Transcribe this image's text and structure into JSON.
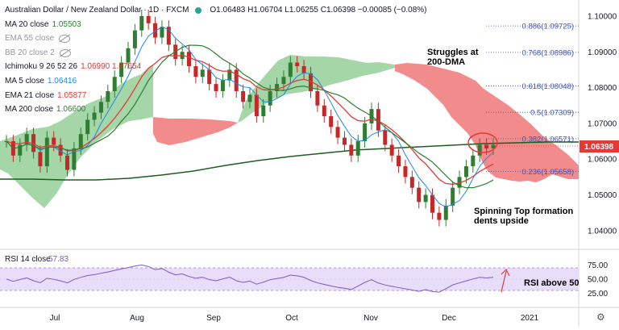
{
  "header": {
    "title": "Australian Dollar / New Zealand Dollar · 1D · FXCM",
    "ohlc": "O1.06483 H1.06704 L1.06255 C1.06398 −0.00085 (−0.08%)"
  },
  "indicators": [
    {
      "label": "MA 20 close",
      "value": "1.05503",
      "color": "#2e7d32",
      "hidden": false
    },
    {
      "label": "EMA 55 close",
      "value": "",
      "color": "#9598a1",
      "hidden": true
    },
    {
      "label": "BB 20 close 2",
      "value": "",
      "color": "#9598a1",
      "hidden": true
    },
    {
      "label": "Ichimoku 9 26 52 26",
      "value": "1.06990  1.07654",
      "color": "#e53935",
      "hidden": false
    },
    {
      "label": "MA 5 close",
      "value": "1.06416",
      "color": "#1e88e5",
      "hidden": false
    },
    {
      "label": "EMA 21 close",
      "value": "1.05877",
      "color": "#e53935",
      "hidden": false
    },
    {
      "label": "MA 200 close",
      "value": "1.06600",
      "color": "#2e7d32",
      "hidden": false
    }
  ],
  "colors": {
    "up": "#26a69a",
    "down": "#ef5350",
    "candle_body_up": "#2e7d32",
    "candle_body_down": "#c62828",
    "cloud_bull": "#a5d6a7",
    "cloud_bear": "#f28b8b",
    "ma200": "#1b5e20",
    "ema21": "#e53935",
    "ma5": "#1e88e5",
    "ma20": "#2e7d32",
    "rsi": "#7e57c2",
    "rsi_band": "#e9defa",
    "fib": "#3f51b5",
    "price_tag": "#e53935",
    "annot_circle": "#e53935"
  },
  "annotations": {
    "struggle": "Struggles at\n200-DMA",
    "spinning": "Spinning Top formation\ndents upside",
    "rsi": "RSI above 50"
  },
  "price_tag": "1.06398",
  "rsi_label": {
    "name": "RSI 14 close",
    "value": "57.83"
  },
  "fib_levels": [
    {
      "label": "0.886(1.09725)",
      "price": 1.09725
    },
    {
      "label": "0.768(1.08986)",
      "price": 1.08986
    },
    {
      "label": "0.618(1.08048)",
      "price": 1.08048
    },
    {
      "label": "0.5(1.07309)",
      "price": 1.07309
    },
    {
      "label": "0.382(1.06571)",
      "price": 1.06571
    },
    {
      "label": "0.236(1.05658)",
      "price": 1.05658
    }
  ],
  "chart_data": {
    "type": "candlestick",
    "title": "Australian Dollar / New Zealand Dollar · 1D · FXCM",
    "y_ticks": [
      "1.10000",
      "1.09000",
      "1.08000",
      "1.07000",
      "1.06000",
      "1.05000",
      "1.04000"
    ],
    "ylim": [
      1.035,
      1.1045
    ],
    "x_ticks": [
      "Jul",
      "Aug",
      "Sep",
      "Oct",
      "Nov",
      "Dec",
      "2021"
    ],
    "rsi_ticks": [
      "75.00",
      "50.00",
      "25.00"
    ],
    "rsi_band": [
      30,
      70
    ],
    "candles_approx_closes": [
      1.065,
      1.061,
      1.064,
      1.067,
      1.062,
      1.058,
      1.066,
      1.064,
      1.061,
      1.057,
      1.063,
      1.067,
      1.071,
      1.073,
      1.076,
      1.079,
      1.083,
      1.087,
      1.091,
      1.096,
      1.1,
      1.098,
      1.094,
      1.097,
      1.092,
      1.088,
      1.09,
      1.086,
      1.083,
      1.085,
      1.081,
      1.079,
      1.082,
      1.085,
      1.079,
      1.076,
      1.078,
      1.072,
      1.075,
      1.079,
      1.081,
      1.083,
      1.087,
      1.086,
      1.084,
      1.079,
      1.075,
      1.072,
      1.069,
      1.066,
      1.064,
      1.061,
      1.065,
      1.07,
      1.074,
      1.068,
      1.064,
      1.061,
      1.058,
      1.055,
      1.052,
      1.048,
      1.05,
      1.045,
      1.043,
      1.047,
      1.052,
      1.055,
      1.058,
      1.061,
      1.064,
      1.063,
      1.064
    ]
  }
}
